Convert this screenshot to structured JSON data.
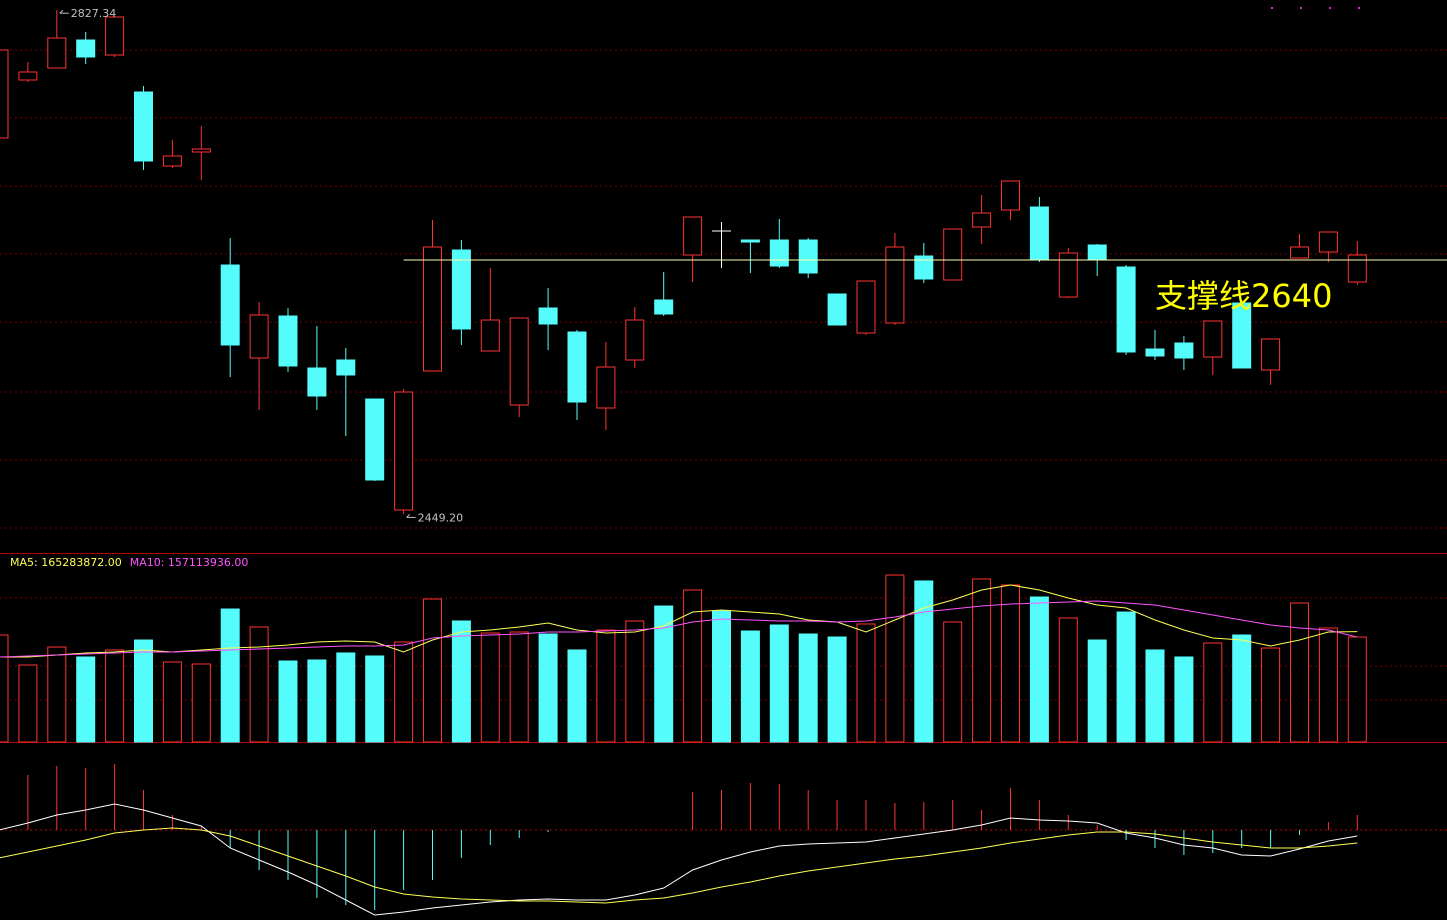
{
  "chart_data": [
    {
      "type": "candlestick",
      "ylim": [
        2422.5,
        2835
      ],
      "up_color": "#ff3232",
      "down_color": "#54fcfc",
      "flat_color": "#ffffff",
      "open": [
        2731.5,
        2775,
        2784,
        2805,
        2793.75,
        2766,
        2710.5,
        2721,
        2636.25,
        2566.5,
        2598,
        2559,
        2565,
        2535.75,
        2452.5,
        2556.75,
        2647.5,
        2571.75,
        2531.25,
        2604,
        2586,
        2529,
        2565,
        2610,
        2643.75,
        2661.75,
        2655,
        2655,
        2655,
        2614.5,
        2585.25,
        2592.75,
        2643,
        2625,
        2664.75,
        2677.5,
        2679.75,
        2612.25,
        2651.25,
        2634.75,
        2573.25,
        2577.75,
        2567.25,
        2607.75,
        2557.5,
        2641.5,
        2646,
        2623.5
      ],
      "high": [
        2801.25,
        2788.5,
        2827.34,
        2811,
        2822.25,
        2770.5,
        2730,
        2740.5,
        2656.5,
        2608.5,
        2604,
        2590.5,
        2574,
        2535.75,
        2543.25,
        2670,
        2655,
        2634,
        2596.5,
        2619,
        2587.5,
        2578.5,
        2604.75,
        2631,
        2672.25,
        2668.5,
        2655,
        2670.75,
        2656.5,
        2614.5,
        2624.25,
        2660.25,
        2652.75,
        2663.25,
        2688.75,
        2699.25,
        2687.25,
        2649,
        2652,
        2636.25,
        2587.5,
        2583,
        2594.25,
        2610,
        2580.75,
        2659.5,
        2661,
        2654.25
      ],
      "low": [
        2731.5,
        2773.5,
        2784,
        2787,
        2792.25,
        2707.5,
        2709,
        2700,
        2552.25,
        2527.5,
        2556,
        2527.5,
        2508,
        2474.25,
        2449.2,
        2556.75,
        2576.25,
        2571.75,
        2522.25,
        2572.5,
        2520,
        2512.5,
        2559,
        2598,
        2623.5,
        2634,
        2630.25,
        2634,
        2626.5,
        2591.25,
        2583.75,
        2591.25,
        2622.75,
        2625,
        2652,
        2670,
        2638.5,
        2611.5,
        2628,
        2568.75,
        2565,
        2557.5,
        2553.75,
        2559,
        2546.25,
        2641.5,
        2638.5,
        2621.25
      ],
      "close": [
        2797.5,
        2781,
        2806.5,
        2792.25,
        2822.25,
        2714.25,
        2718,
        2723.25,
        2576.25,
        2598.75,
        2560.5,
        2538,
        2553.75,
        2475,
        2541,
        2649.75,
        2588.25,
        2595,
        2596.5,
        2592,
        2533.5,
        2559.75,
        2595,
        2599.5,
        2672.25,
        2661.75,
        2653.5,
        2635.5,
        2630.25,
        2591.25,
        2624.25,
        2649.75,
        2625.75,
        2663.25,
        2675.25,
        2699.25,
        2640,
        2645.25,
        2640.75,
        2571,
        2568,
        2566.5,
        2594.25,
        2559,
        2580.75,
        2649.75,
        2661,
        2643.75
      ],
      "max_label": "2827.34",
      "min_label": "2449.20",
      "support_line": {
        "value": 2640,
        "label": "支撑线2640",
        "color": "#ffffb0",
        "label_color": "#ffff00"
      }
    },
    {
      "type": "bar",
      "ylim": [
        0,
        280000000
      ],
      "values": [
        160200000,
        115300000,
        142200000,
        127300000,
        137800000,
        152700000,
        119800000,
        116800000,
        199100000,
        172200000,
        121300000,
        122800000,
        133300000,
        128800000,
        149700000,
        214100000,
        181200000,
        163200000,
        164700000,
        161700000,
        137800000,
        167700000,
        181200000,
        203600000,
        227600000,
        196100000,
        166200000,
        175200000,
        161700000,
        157200000,
        176700000,
        250000000,
        241100000,
        179700000,
        244100000,
        235100000,
        217100000,
        185700000,
        152700000,
        194600000,
        137800000,
        127300000,
        148200000,
        160200000,
        140700000,
        208100000,
        170700000,
        157200000
      ],
      "series": [
        {
          "name": "MA5: 165283872.00",
          "color": "#ffff54",
          "values": [
            127300000,
            127300000,
            130300000,
            133300000,
            134800000,
            137800000,
            134800000,
            137800000,
            140700000,
            142200000,
            145200000,
            149700000,
            151200000,
            149700000,
            134800000,
            152700000,
            164700000,
            167700000,
            172200000,
            178200000,
            167700000,
            163200000,
            164700000,
            173700000,
            194600000,
            197600000,
            194600000,
            191700000,
            182700000,
            179700000,
            164700000,
            182700000,
            200600000,
            212600000,
            227600000,
            235100000,
            227600000,
            215600000,
            205100000,
            200600000,
            182700000,
            167700000,
            155700000,
            152700000,
            143700000,
            152700000,
            164700000,
            165283872
          ]
        },
        {
          "name": "MA10: 157113936.00",
          "color": "#ff54ff",
          "values": [
            127300000,
            128800000,
            130300000,
            131800000,
            133300000,
            134800000,
            134800000,
            136300000,
            137800000,
            139200000,
            140700000,
            142200000,
            143700000,
            143700000,
            145200000,
            155700000,
            158700000,
            160200000,
            161700000,
            164700000,
            164700000,
            166200000,
            167700000,
            170700000,
            179700000,
            184200000,
            182700000,
            181200000,
            181200000,
            179700000,
            181200000,
            187200000,
            194600000,
            199100000,
            203600000,
            206600000,
            208100000,
            209600000,
            211100000,
            208100000,
            205100000,
            197600000,
            190200000,
            182700000,
            175200000,
            170700000,
            167700000,
            157113936
          ]
        }
      ]
    },
    {
      "type": "macd",
      "ylim": [
        -22.5,
        17.5
      ],
      "up_color": "#ff3232",
      "down_color": "#54fcfc",
      "values": [
        7.5,
        13.75,
        16,
        15.5,
        16.5,
        10,
        3.75,
        1,
        -4.5,
        -10,
        -12.5,
        -17,
        -18.75,
        -20,
        -15,
        -12.5,
        -7,
        -3.75,
        -2,
        -0.5,
        0,
        0,
        0,
        0,
        9.5,
        10,
        11.75,
        11.5,
        10,
        7.5,
        7.5,
        6.75,
        7,
        7.5,
        5,
        10.5,
        7.5,
        3.75,
        1.25,
        -2.5,
        -4.5,
        -6.25,
        -5.75,
        -4.5,
        -4.5,
        -1.25,
        2,
        3.75
      ],
      "series": [
        {
          "color": "#ffffff",
          "values": [
            0,
            1.75,
            3.75,
            5,
            6.5,
            5,
            3,
            1,
            -4.5,
            -7.5,
            -10.5,
            -13.75,
            -17.5,
            -21.25,
            -20.5,
            -19.5,
            -18.75,
            -18,
            -17.5,
            -17.25,
            -17.5,
            -17.5,
            -16.25,
            -14.5,
            -10,
            -7.5,
            -5.5,
            -4,
            -3.5,
            -3.25,
            -3,
            -2,
            -1,
            0,
            1.25,
            3,
            2.5,
            2.25,
            1.75,
            -0.75,
            -2,
            -3.75,
            -4.5,
            -6.25,
            -6.5,
            -4.75,
            -2.75,
            -1.5
          ]
        },
        {
          "color": "#ffff54",
          "values": [
            -7,
            -5.5,
            -4,
            -2.5,
            -0.75,
            0,
            0.5,
            0,
            -1.5,
            -4,
            -6.5,
            -9,
            -11.5,
            -14.25,
            -16,
            -16.75,
            -17.25,
            -17.5,
            -17.75,
            -17.75,
            -18,
            -18.25,
            -17.5,
            -17,
            -15.75,
            -14.25,
            -13,
            -11.5,
            -10.25,
            -9.25,
            -8.25,
            -7.25,
            -6.5,
            -5.5,
            -4.5,
            -3.25,
            -2.25,
            -1.25,
            -0.5,
            -0.5,
            -1,
            -2,
            -3,
            -3.75,
            -4.5,
            -4.5,
            -4,
            -3.25
          ]
        }
      ]
    }
  ]
}
